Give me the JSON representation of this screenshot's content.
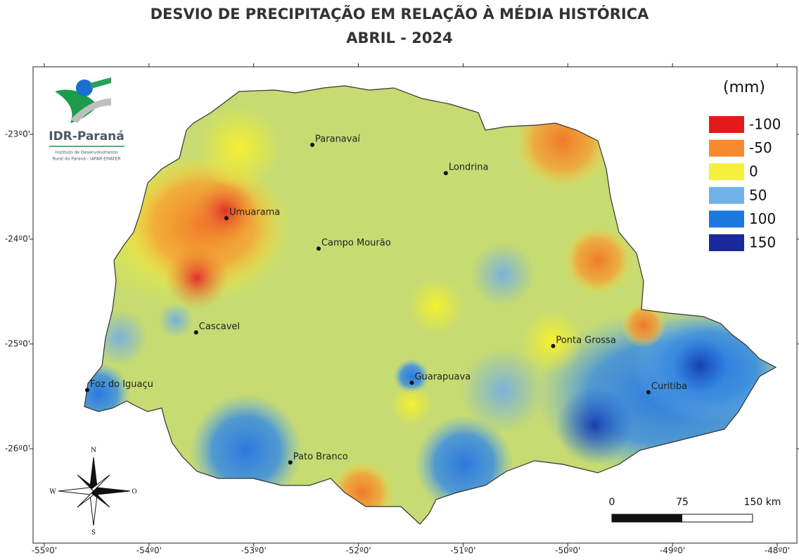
{
  "title": "DESVIO DE PRECIPITAÇÃO EM RELAÇÃO À MÉDIA HISTÓRICA",
  "subtitle": "ABRIL - 2024",
  "logo": {
    "name": "IDR-Paraná",
    "line1": "Instituto de Desenvolvimento",
    "line2": "Rural do Paraná - IAPAR-EMATER"
  },
  "map": {
    "xlim": [
      -55.107,
      -47.812
    ],
    "ylim": [
      -26.9,
      -22.356
    ],
    "xticks": [
      {
        "value": -55,
        "label": "-55º0'"
      },
      {
        "value": -54,
        "label": "-54º0'"
      },
      {
        "value": -53,
        "label": "-53º0'"
      },
      {
        "value": -52,
        "label": "-52º0'"
      },
      {
        "value": -51,
        "label": "-51º0'"
      },
      {
        "value": -50,
        "label": "-50º0'"
      },
      {
        "value": -49,
        "label": "-49º0'"
      },
      {
        "value": -48,
        "label": "-48º0'"
      }
    ],
    "yticks": [
      {
        "value": -23,
        "label": "-23º0'"
      },
      {
        "value": -24,
        "label": "-24º0'"
      },
      {
        "value": -25,
        "label": "-25º0'"
      },
      {
        "value": -26,
        "label": "-26º0'"
      }
    ],
    "cities": [
      {
        "name": "Paranavaí",
        "lon": -52.44,
        "lat": -23.1
      },
      {
        "name": "Londrina",
        "lon": -51.165,
        "lat": -23.37
      },
      {
        "name": "Umuarama",
        "lon": -53.26,
        "lat": -23.8
      },
      {
        "name": "Campo Mourão",
        "lon": -52.38,
        "lat": -24.09
      },
      {
        "name": "Cascavel",
        "lon": -53.55,
        "lat": -24.89
      },
      {
        "name": "Ponta Grossa",
        "lon": -50.14,
        "lat": -25.02
      },
      {
        "name": "Guarapuava",
        "lon": -51.49,
        "lat": -25.37
      },
      {
        "name": "Foz do Iguaçu",
        "lon": -54.59,
        "lat": -25.44
      },
      {
        "name": "Curitiba",
        "lon": -49.23,
        "lat": -25.46
      },
      {
        "name": "Pato Branco",
        "lon": -52.65,
        "lat": -26.13
      }
    ]
  },
  "legend": {
    "title": "(mm)",
    "items": [
      {
        "value": -100,
        "color": "#e31a1c"
      },
      {
        "value": -50,
        "color": "#f88a2e"
      },
      {
        "value": 0,
        "color": "#f5f03a"
      },
      {
        "value": 50,
        "color": "#6fb2e6"
      },
      {
        "value": 100,
        "color": "#1a78e0"
      },
      {
        "value": 150,
        "color": "#1a2a9a"
      }
    ]
  },
  "scale_bar": {
    "ticks": [
      0,
      75,
      {
        "value": 150,
        "label": "150 km"
      }
    ]
  },
  "compass": {
    "n": "N",
    "s": "S",
    "w": "W",
    "e": "O"
  }
}
